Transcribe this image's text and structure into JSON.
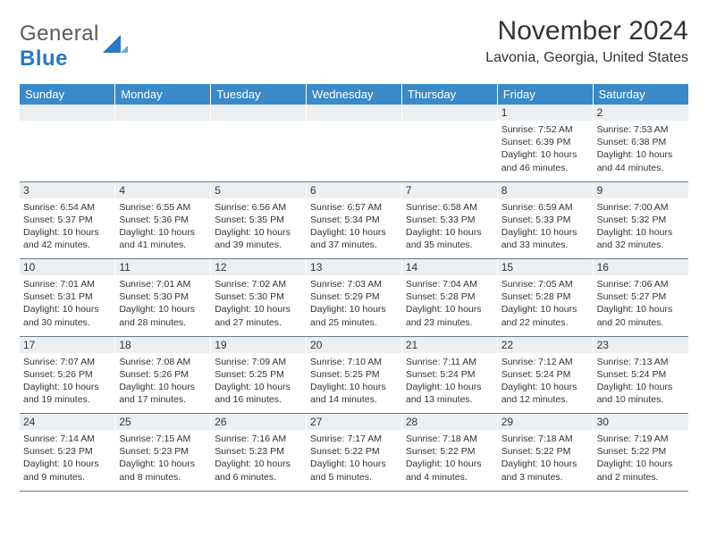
{
  "logo": {
    "text1": "General",
    "text2": "Blue",
    "mark_color": "#2b78c4"
  },
  "title": "November 2024",
  "location": "Lavonia, Georgia, United States",
  "colors": {
    "header_bg": "#3a8ac9",
    "header_text": "#ffffff",
    "daynum_bg": "#eceff1",
    "rule": "#6a7a8a",
    "text": "#333333"
  },
  "weekdays": [
    "Sunday",
    "Monday",
    "Tuesday",
    "Wednesday",
    "Thursday",
    "Friday",
    "Saturday"
  ],
  "weeks": [
    [
      null,
      null,
      null,
      null,
      null,
      {
        "n": "1",
        "sunrise": "7:52 AM",
        "sunset": "6:39 PM",
        "daylight": "10 hours and 46 minutes."
      },
      {
        "n": "2",
        "sunrise": "7:53 AM",
        "sunset": "6:38 PM",
        "daylight": "10 hours and 44 minutes."
      }
    ],
    [
      {
        "n": "3",
        "sunrise": "6:54 AM",
        "sunset": "5:37 PM",
        "daylight": "10 hours and 42 minutes."
      },
      {
        "n": "4",
        "sunrise": "6:55 AM",
        "sunset": "5:36 PM",
        "daylight": "10 hours and 41 minutes."
      },
      {
        "n": "5",
        "sunrise": "6:56 AM",
        "sunset": "5:35 PM",
        "daylight": "10 hours and 39 minutes."
      },
      {
        "n": "6",
        "sunrise": "6:57 AM",
        "sunset": "5:34 PM",
        "daylight": "10 hours and 37 minutes."
      },
      {
        "n": "7",
        "sunrise": "6:58 AM",
        "sunset": "5:33 PM",
        "daylight": "10 hours and 35 minutes."
      },
      {
        "n": "8",
        "sunrise": "6:59 AM",
        "sunset": "5:33 PM",
        "daylight": "10 hours and 33 minutes."
      },
      {
        "n": "9",
        "sunrise": "7:00 AM",
        "sunset": "5:32 PM",
        "daylight": "10 hours and 32 minutes."
      }
    ],
    [
      {
        "n": "10",
        "sunrise": "7:01 AM",
        "sunset": "5:31 PM",
        "daylight": "10 hours and 30 minutes."
      },
      {
        "n": "11",
        "sunrise": "7:01 AM",
        "sunset": "5:30 PM",
        "daylight": "10 hours and 28 minutes."
      },
      {
        "n": "12",
        "sunrise": "7:02 AM",
        "sunset": "5:30 PM",
        "daylight": "10 hours and 27 minutes."
      },
      {
        "n": "13",
        "sunrise": "7:03 AM",
        "sunset": "5:29 PM",
        "daylight": "10 hours and 25 minutes."
      },
      {
        "n": "14",
        "sunrise": "7:04 AM",
        "sunset": "5:28 PM",
        "daylight": "10 hours and 23 minutes."
      },
      {
        "n": "15",
        "sunrise": "7:05 AM",
        "sunset": "5:28 PM",
        "daylight": "10 hours and 22 minutes."
      },
      {
        "n": "16",
        "sunrise": "7:06 AM",
        "sunset": "5:27 PM",
        "daylight": "10 hours and 20 minutes."
      }
    ],
    [
      {
        "n": "17",
        "sunrise": "7:07 AM",
        "sunset": "5:26 PM",
        "daylight": "10 hours and 19 minutes."
      },
      {
        "n": "18",
        "sunrise": "7:08 AM",
        "sunset": "5:26 PM",
        "daylight": "10 hours and 17 minutes."
      },
      {
        "n": "19",
        "sunrise": "7:09 AM",
        "sunset": "5:25 PM",
        "daylight": "10 hours and 16 minutes."
      },
      {
        "n": "20",
        "sunrise": "7:10 AM",
        "sunset": "5:25 PM",
        "daylight": "10 hours and 14 minutes."
      },
      {
        "n": "21",
        "sunrise": "7:11 AM",
        "sunset": "5:24 PM",
        "daylight": "10 hours and 13 minutes."
      },
      {
        "n": "22",
        "sunrise": "7:12 AM",
        "sunset": "5:24 PM",
        "daylight": "10 hours and 12 minutes."
      },
      {
        "n": "23",
        "sunrise": "7:13 AM",
        "sunset": "5:24 PM",
        "daylight": "10 hours and 10 minutes."
      }
    ],
    [
      {
        "n": "24",
        "sunrise": "7:14 AM",
        "sunset": "5:23 PM",
        "daylight": "10 hours and 9 minutes."
      },
      {
        "n": "25",
        "sunrise": "7:15 AM",
        "sunset": "5:23 PM",
        "daylight": "10 hours and 8 minutes."
      },
      {
        "n": "26",
        "sunrise": "7:16 AM",
        "sunset": "5:23 PM",
        "daylight": "10 hours and 6 minutes."
      },
      {
        "n": "27",
        "sunrise": "7:17 AM",
        "sunset": "5:22 PM",
        "daylight": "10 hours and 5 minutes."
      },
      {
        "n": "28",
        "sunrise": "7:18 AM",
        "sunset": "5:22 PM",
        "daylight": "10 hours and 4 minutes."
      },
      {
        "n": "29",
        "sunrise": "7:18 AM",
        "sunset": "5:22 PM",
        "daylight": "10 hours and 3 minutes."
      },
      {
        "n": "30",
        "sunrise": "7:19 AM",
        "sunset": "5:22 PM",
        "daylight": "10 hours and 2 minutes."
      }
    ]
  ],
  "labels": {
    "sunrise": "Sunrise: ",
    "sunset": "Sunset: ",
    "daylight": "Daylight: "
  }
}
